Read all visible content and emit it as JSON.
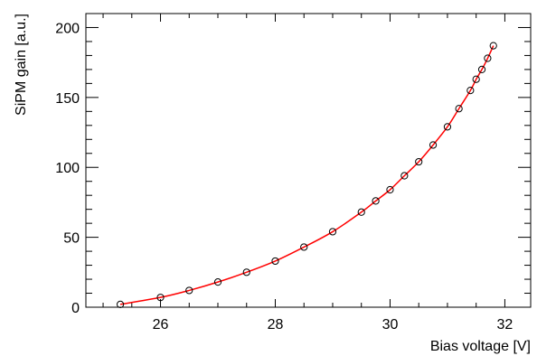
{
  "chart_data": {
    "type": "scatter",
    "title": "",
    "xlabel": "Bias voltage [V]",
    "ylabel": "SiPM gain [a.u.]",
    "xlim": [
      24.7,
      32.45
    ],
    "ylim": [
      0,
      210
    ],
    "xticks": [
      26,
      28,
      30,
      32
    ],
    "yticks": [
      0,
      50,
      100,
      150,
      200
    ],
    "x_tick_labels": [
      "26",
      "28",
      "30",
      "32"
    ],
    "y_tick_labels": [
      "0",
      "50",
      "100",
      "150",
      "200"
    ],
    "grid": false,
    "legend": "none",
    "series": [
      {
        "kind": "markers",
        "marker": "open-circle",
        "color": "#000000",
        "x": [
          25.3,
          26.0,
          26.5,
          27.0,
          27.5,
          28.0,
          28.5,
          29.0,
          29.5,
          29.75,
          30.0,
          30.25,
          30.5,
          30.75,
          31.0,
          31.2,
          31.4,
          31.5,
          31.6,
          31.7,
          31.8
        ],
        "y": [
          2,
          7,
          12,
          18,
          25,
          33,
          43,
          54,
          68,
          76,
          84,
          94,
          104,
          116,
          129,
          142,
          155,
          163,
          170,
          178,
          187
        ]
      },
      {
        "kind": "fit-line",
        "color": "#ff0000",
        "x": [
          25.3,
          26.0,
          26.5,
          27.0,
          27.5,
          28.0,
          28.5,
          29.0,
          29.5,
          29.75,
          30.0,
          30.25,
          30.5,
          30.75,
          31.0,
          31.2,
          31.4,
          31.5,
          31.6,
          31.7,
          31.8
        ],
        "y": [
          2,
          7,
          12,
          18,
          25,
          33,
          43,
          54,
          68,
          76,
          84,
          94,
          104,
          116,
          129,
          142,
          155,
          163,
          170,
          178,
          187
        ]
      }
    ],
    "colors": {
      "frame": "#000000",
      "markers": "#000000",
      "fit": "#ff0000"
    }
  }
}
